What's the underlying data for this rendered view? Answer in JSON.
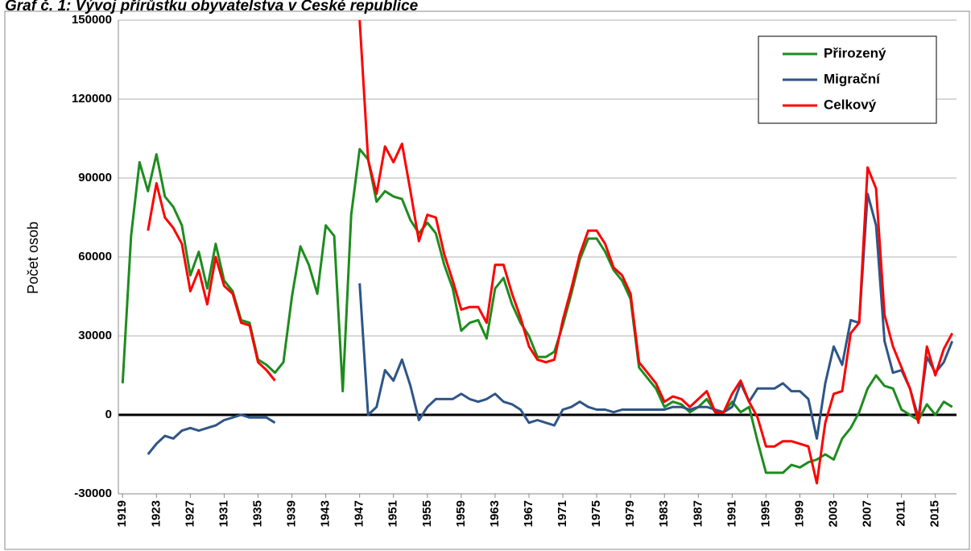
{
  "chart_data": {
    "type": "line",
    "title": "Graf č. 1: Vývoj přírůstku obyvatelstva v České republice",
    "y_label": "Počet osob",
    "x": [
      1919,
      1920,
      1921,
      1922,
      1923,
      1924,
      1925,
      1926,
      1927,
      1928,
      1929,
      1930,
      1931,
      1932,
      1933,
      1934,
      1935,
      1936,
      1937,
      1938,
      1939,
      1940,
      1941,
      1942,
      1943,
      1944,
      1945,
      1946,
      1947,
      1948,
      1949,
      1950,
      1951,
      1952,
      1953,
      1954,
      1955,
      1956,
      1957,
      1958,
      1959,
      1960,
      1961,
      1962,
      1963,
      1964,
      1965,
      1966,
      1967,
      1968,
      1969,
      1970,
      1971,
      1972,
      1973,
      1974,
      1975,
      1976,
      1977,
      1978,
      1979,
      1980,
      1981,
      1982,
      1983,
      1984,
      1985,
      1986,
      1987,
      1988,
      1989,
      1990,
      1991,
      1992,
      1993,
      1994,
      1995,
      1996,
      1997,
      1998,
      1999,
      2000,
      2001,
      2002,
      2003,
      2004,
      2005,
      2006,
      2007,
      2008,
      2009,
      2010,
      2011,
      2012,
      2013,
      2014,
      2015,
      2016,
      2017
    ],
    "xlim": [
      1918.5,
      2017.5
    ],
    "xticks": [
      1919,
      1923,
      1927,
      1931,
      1935,
      1939,
      1943,
      1947,
      1951,
      1955,
      1959,
      1963,
      1967,
      1971,
      1975,
      1979,
      1983,
      1987,
      1991,
      1995,
      1999,
      2003,
      2007,
      2011,
      2015
    ],
    "ylim": [
      -30000,
      150000
    ],
    "yticks": [
      -30000,
      0,
      30000,
      60000,
      90000,
      120000,
      150000
    ],
    "grid": true,
    "legend": "top-right",
    "series": [
      {
        "name": "Přirozený",
        "color": "#1e8c1e",
        "values": [
          12000,
          68000,
          96000,
          85000,
          99000,
          83000,
          79000,
          72000,
          53000,
          62000,
          48000,
          65000,
          51000,
          47000,
          36000,
          35000,
          21000,
          19000,
          16000,
          20000,
          45000,
          64000,
          57000,
          46000,
          72000,
          68000,
          9000,
          76000,
          101000,
          97000,
          81000,
          85000,
          83000,
          82000,
          74000,
          69000,
          73000,
          69000,
          57000,
          48000,
          32000,
          35000,
          36000,
          29000,
          48000,
          52000,
          42000,
          35000,
          30000,
          22000,
          22000,
          24000,
          34000,
          46000,
          59000,
          67000,
          67000,
          62000,
          55000,
          51000,
          44000,
          18000,
          14000,
          10000,
          3000,
          5000,
          4000,
          1000,
          3000,
          6000,
          1000,
          1000,
          5000,
          1000,
          3000,
          -10000,
          -22000,
          -22000,
          -22000,
          -19000,
          -20000,
          -18000,
          -17000,
          -15000,
          -17000,
          -9000,
          -5000,
          1000,
          10000,
          15000,
          11000,
          10000,
          2000,
          0,
          -2000,
          4000,
          0,
          5000,
          3000
        ]
      },
      {
        "name": "Migrační",
        "color": "#2e5587",
        "values": [
          null,
          null,
          null,
          -15000,
          -11000,
          -8000,
          -9000,
          -6000,
          -5000,
          -6000,
          -5000,
          -4000,
          -2000,
          -1000,
          0,
          -1000,
          -1000,
          -1000,
          -3000,
          null,
          null,
          null,
          null,
          null,
          null,
          null,
          null,
          null,
          50000,
          0,
          3000,
          17000,
          13000,
          21000,
          11000,
          -2000,
          3000,
          6000,
          6000,
          6000,
          8000,
          6000,
          5000,
          6000,
          8000,
          5000,
          4000,
          2000,
          -3000,
          -2000,
          -3000,
          -4000,
          2000,
          3000,
          5000,
          3000,
          2000,
          2000,
          1000,
          2000,
          2000,
          2000,
          2000,
          2000,
          2000,
          3000,
          3000,
          2000,
          3000,
          3000,
          2000,
          1000,
          3000,
          12000,
          5000,
          10000,
          10000,
          10000,
          12000,
          9000,
          9000,
          6000,
          -9000,
          12000,
          26000,
          19000,
          36000,
          35000,
          84000,
          72000,
          28000,
          16000,
          17000,
          10000,
          -1000,
          22000,
          16000,
          20000,
          28000
        ]
      },
      {
        "name": "Celkový",
        "color": "#ff0000",
        "values": [
          null,
          null,
          null,
          70000,
          88000,
          75000,
          71000,
          65000,
          47000,
          55000,
          42000,
          60000,
          49000,
          46000,
          35000,
          34000,
          20000,
          17000,
          13000,
          null,
          null,
          null,
          null,
          null,
          null,
          null,
          null,
          null,
          150000,
          97000,
          84000,
          102000,
          96000,
          103000,
          85000,
          66000,
          76000,
          75000,
          61000,
          51000,
          40000,
          41000,
          41000,
          35000,
          57000,
          57000,
          46000,
          37000,
          26000,
          21000,
          20000,
          21000,
          36000,
          48000,
          61000,
          70000,
          70000,
          65000,
          56000,
          53000,
          46000,
          20000,
          16000,
          12000,
          5000,
          7000,
          6000,
          3000,
          6000,
          9000,
          1000,
          1000,
          8000,
          13000,
          5000,
          -1000,
          -12000,
          -12000,
          -10000,
          -10000,
          -11000,
          -12000,
          -26000,
          -3000,
          8000,
          9000,
          31000,
          35000,
          94000,
          86000,
          38000,
          26000,
          18000,
          10000,
          -3000,
          26000,
          15000,
          25000,
          31000
        ]
      }
    ]
  }
}
